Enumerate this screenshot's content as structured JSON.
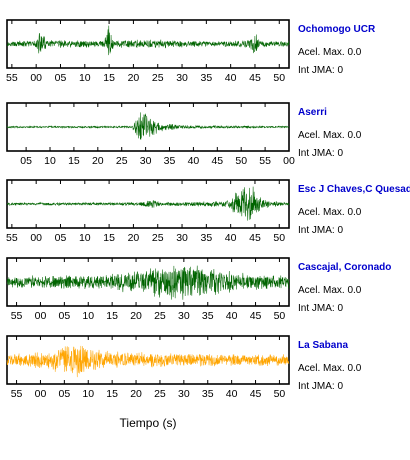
{
  "chart_data": {
    "type": "line",
    "title": "",
    "xlabel": "Tiempo (s)",
    "ylabel": "",
    "grid": false,
    "label_color": "#0000cc",
    "panels": [
      {
        "station": "Ochomogo UCR",
        "accel_label": "Acel. Max.",
        "accel_value": "0.0",
        "jma_label": "Int JMA:",
        "jma_value": "0",
        "color": "#006400",
        "tick_labels": [
          "55",
          "00",
          "05",
          "10",
          "15",
          "20",
          "25",
          "30",
          "35",
          "40",
          "45",
          "50"
        ],
        "first_tick_sec": 55,
        "start_sec": 54,
        "duration_sec": 58,
        "envelope": [
          [
            0,
            0.14
          ],
          [
            6,
            0.16
          ],
          [
            7,
            0.75
          ],
          [
            8,
            0.2
          ],
          [
            20,
            0.16
          ],
          [
            21,
            1.0
          ],
          [
            22,
            0.2
          ],
          [
            33,
            0.2
          ],
          [
            42,
            0.14
          ],
          [
            50,
            0.2
          ],
          [
            51,
            0.65
          ],
          [
            52,
            0.16
          ],
          [
            58,
            0.14
          ]
        ]
      },
      {
        "station": "Aserri",
        "accel_label": "Acel. Max.",
        "accel_value": "0.0",
        "jma_label": "Int JMA:",
        "jma_value": "0",
        "color": "#006400",
        "tick_labels": [
          "05",
          "10",
          "15",
          "20",
          "25",
          "30",
          "35",
          "40",
          "45",
          "50",
          "55",
          "00"
        ],
        "first_tick_sec": 5,
        "start_sec": 1,
        "duration_sec": 59,
        "envelope": [
          [
            0,
            0.04
          ],
          [
            26,
            0.05
          ],
          [
            28,
            0.95
          ],
          [
            30,
            0.45
          ],
          [
            33,
            0.18
          ],
          [
            38,
            0.08
          ],
          [
            59,
            0.04
          ]
        ]
      },
      {
        "station": "Esc J Chaves,C Quesada",
        "accel_label": "Acel. Max.",
        "accel_value": "0.0",
        "jma_label": "Int JMA:",
        "jma_value": "0",
        "color": "#006400",
        "tick_labels": [
          "55",
          "00",
          "05",
          "10",
          "15",
          "20",
          "25",
          "30",
          "35",
          "40",
          "45",
          "50"
        ],
        "first_tick_sec": 55,
        "start_sec": 54,
        "duration_sec": 58,
        "envelope": [
          [
            0,
            0.06
          ],
          [
            27,
            0.08
          ],
          [
            30,
            0.22
          ],
          [
            32,
            0.08
          ],
          [
            45,
            0.15
          ],
          [
            47,
            0.55
          ],
          [
            50,
            1.0
          ],
          [
            52,
            0.4
          ],
          [
            54,
            0.14
          ],
          [
            58,
            0.08
          ]
        ]
      },
      {
        "station": "Cascajal, Coronado",
        "accel_label": "Acel. Max.",
        "accel_value": "0.0",
        "jma_label": "Int JMA:",
        "jma_value": "0",
        "color": "#006400",
        "tick_labels": [
          "55",
          "00",
          "05",
          "10",
          "15",
          "20",
          "25",
          "30",
          "35",
          "40",
          "45",
          "50"
        ],
        "first_tick_sec": 55,
        "start_sec": 53,
        "duration_sec": 59,
        "envelope": [
          [
            0,
            0.28
          ],
          [
            10,
            0.32
          ],
          [
            20,
            0.38
          ],
          [
            28,
            0.55
          ],
          [
            35,
            0.95
          ],
          [
            40,
            0.8
          ],
          [
            46,
            0.55
          ],
          [
            50,
            0.4
          ],
          [
            59,
            0.3
          ]
        ]
      },
      {
        "station": "La Sabana",
        "accel_label": "Acel. Max.",
        "accel_value": "0.0",
        "jma_label": "Int JMA:",
        "jma_value": "0",
        "color": "#ffa500",
        "tick_labels": [
          "55",
          "00",
          "05",
          "10",
          "15",
          "20",
          "25",
          "30",
          "35",
          "40",
          "45",
          "50"
        ],
        "first_tick_sec": 55,
        "start_sec": 53,
        "duration_sec": 59,
        "envelope": [
          [
            0,
            0.28
          ],
          [
            8,
            0.45
          ],
          [
            13,
            0.75
          ],
          [
            15,
            0.95
          ],
          [
            17,
            0.55
          ],
          [
            25,
            0.38
          ],
          [
            40,
            0.3
          ],
          [
            59,
            0.28
          ]
        ]
      }
    ]
  }
}
